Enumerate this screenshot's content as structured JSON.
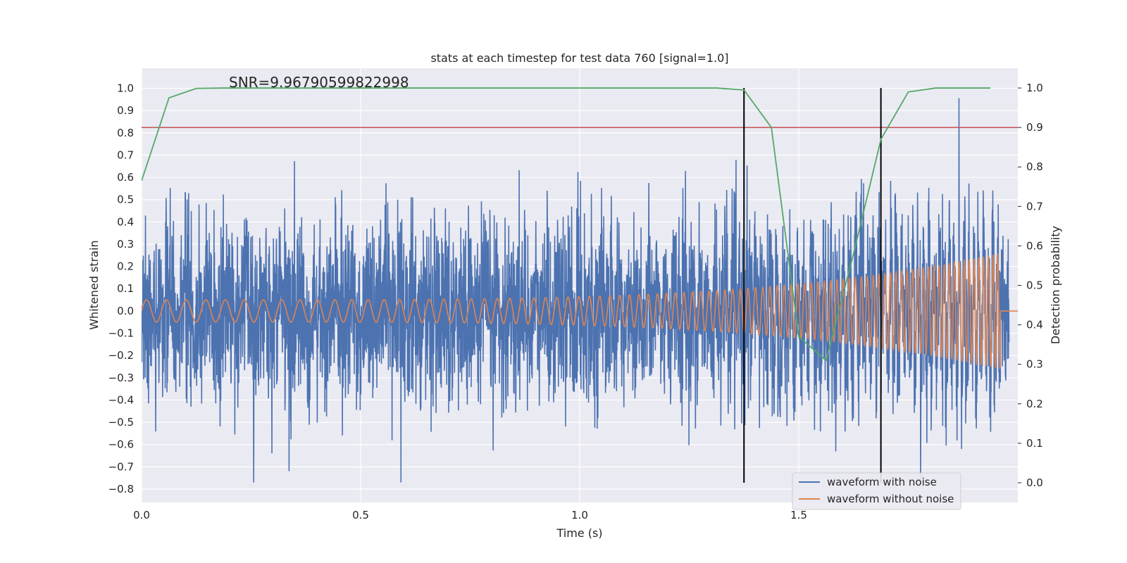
{
  "chart_data": {
    "type": "line",
    "title": "stats at each timestep for test data 760 [signal=1.0]",
    "annotation": "SNR=9.96790599822998",
    "xlabel": "Time (s)",
    "ylabel": "Whitened strain",
    "y2label": "Detection probability",
    "xlim": [
      0.0,
      2.0
    ],
    "ylim": [
      -0.86,
      1.09
    ],
    "y2lim": [
      -0.05,
      1.05
    ],
    "x_ticks": [
      0.0,
      0.5,
      1.0,
      1.5
    ],
    "x_tick_labels": [
      "0.0",
      "0.5",
      "1.0",
      "1.5"
    ],
    "y_ticks": [
      1.0,
      0.9,
      0.8,
      0.7,
      0.6,
      0.5,
      0.4,
      0.3,
      0.2,
      0.1,
      0.0,
      -0.1,
      -0.2,
      -0.3,
      -0.4,
      -0.5,
      -0.6,
      -0.7,
      -0.8
    ],
    "y_tick_labels": [
      "1.0",
      "0.9",
      "0.8",
      "0.7",
      "0.6",
      "0.5",
      "0.4",
      "0.3",
      "0.2",
      "0.1",
      "0.0",
      "−0.1",
      "−0.2",
      "−0.3",
      "−0.4",
      "−0.5",
      "−0.6",
      "−0.7",
      "−0.8"
    ],
    "y2_ticks": [
      1.0,
      0.9,
      0.8,
      0.7,
      0.6,
      0.5,
      0.4,
      0.3,
      0.2,
      0.1,
      0.0
    ],
    "y2_tick_labels": [
      "1.0",
      "0.9",
      "0.8",
      "0.7",
      "0.6",
      "0.5",
      "0.4",
      "0.3",
      "0.2",
      "0.1",
      "0.0"
    ],
    "grid": true,
    "legend_position": "lower-right",
    "series": [
      {
        "name": "waveform with noise",
        "axis": "left",
        "color": "#4c72b0",
        "description": "dense whitened strain noise, approx uniform amplitude",
        "t_end": 1.98,
        "peak_max": 1.0,
        "peak_min": -0.77
      },
      {
        "name": "waveform without noise",
        "axis": "left",
        "color": "#dd8452",
        "description": "chirp signal growing in frequency and amplitude",
        "t_start": 0.0,
        "t_merge": 1.96,
        "t_end": 2.0,
        "amp_start": 0.05,
        "amp_end": 0.26,
        "freq_start": 22,
        "freq_end": 95
      },
      {
        "name": "detection probability",
        "axis": "right",
        "color": "#55a868",
        "x": [
          0.0,
          0.0625,
          0.125,
          0.1875,
          0.25,
          0.3125,
          0.375,
          0.4375,
          0.5,
          0.5625,
          0.625,
          0.6875,
          0.75,
          0.8125,
          0.875,
          0.9375,
          1.0,
          1.0625,
          1.125,
          1.1875,
          1.25,
          1.3125,
          1.375,
          1.4375,
          1.5,
          1.5625,
          1.625,
          1.6875,
          1.75,
          1.8125,
          1.875,
          1.9375
        ],
        "values": [
          0.765,
          0.975,
          0.999,
          1.0,
          1.0,
          1.0,
          1.0,
          1.0,
          1.0,
          1.0,
          1.0,
          1.0,
          1.0,
          1.0,
          1.0,
          1.0,
          1.0,
          1.0,
          1.0,
          1.0,
          1.0,
          1.0,
          0.995,
          0.9,
          0.37,
          0.31,
          0.58,
          0.87,
          0.99,
          1.0,
          1.0,
          1.0
        ]
      }
    ],
    "threshold": {
      "axis": "right",
      "value": 0.9,
      "color": "#c44e52"
    },
    "vertical_markers": [
      {
        "x": 1.375,
        "color": "#000000"
      },
      {
        "x": 1.6875,
        "color": "#000000"
      }
    ],
    "legend": [
      "waveform with noise",
      "waveform without noise"
    ]
  }
}
